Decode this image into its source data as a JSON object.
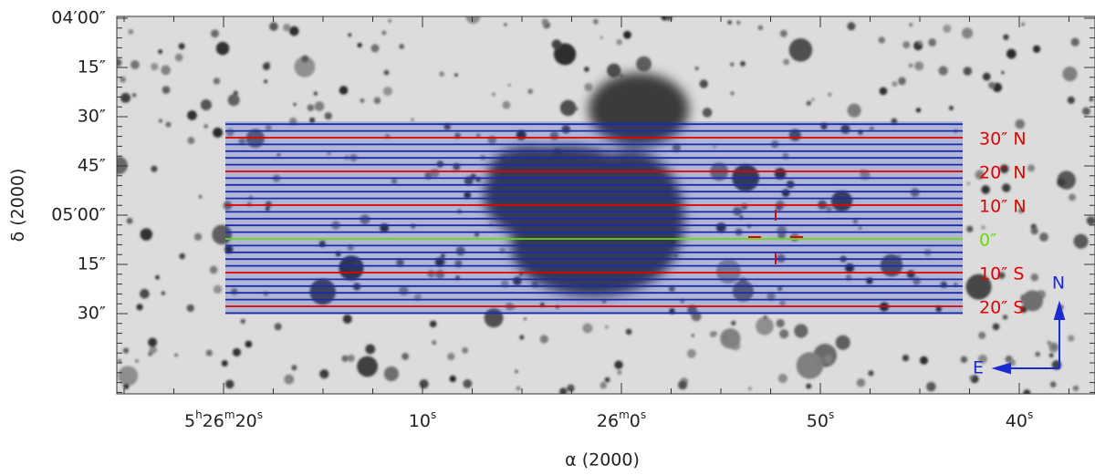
{
  "figure": {
    "y_axis": {
      "label": "δ (2000)",
      "ticks": [
        "04′00″",
        "15″",
        "30″",
        "45″",
        "05′00″",
        "15″",
        "30″"
      ]
    },
    "x_axis": {
      "label": "α (2000)",
      "ticks": [
        "5h26m20s",
        "10s",
        "26m0s",
        "50s",
        "40s"
      ]
    },
    "slit_labels": [
      {
        "text": "30″ N",
        "color": "#e00000"
      },
      {
        "text": "20″ N",
        "color": "#e00000"
      },
      {
        "text": "10″ N",
        "color": "#e00000"
      },
      {
        "text": "0″",
        "color": "#66dd00"
      },
      {
        "text": "10″ S",
        "color": "#e00000"
      },
      {
        "text": "20″ S",
        "color": "#e00000"
      }
    ],
    "compass": {
      "north": "N",
      "east": "E"
    }
  }
}
